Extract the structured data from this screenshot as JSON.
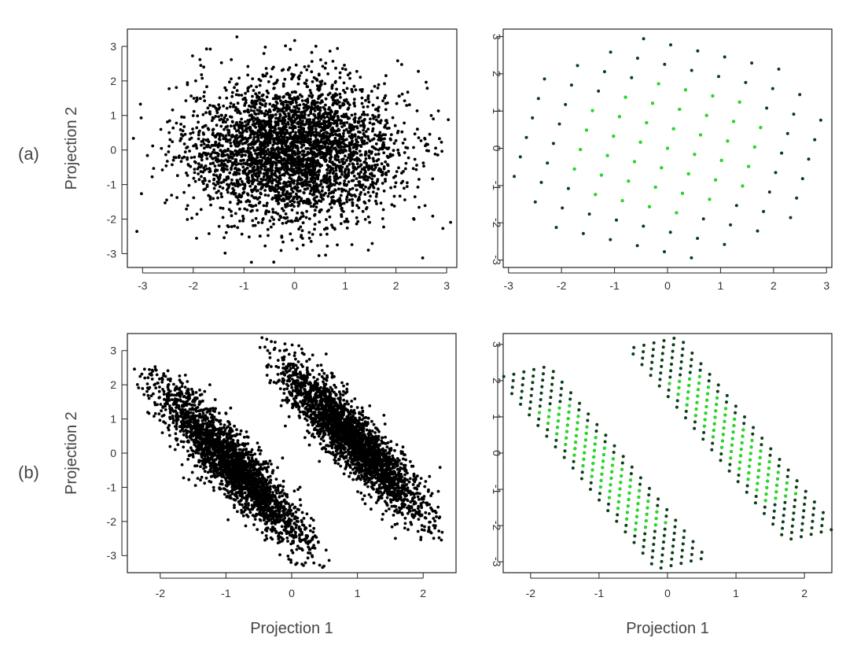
{
  "panel_labels": [
    "(a)",
    "(b)"
  ],
  "chart_data": [
    {
      "id": "a-left",
      "type": "scatter",
      "xlabel": "",
      "ylabel": "Projection 2",
      "xlim": [
        -3.3,
        3.2
      ],
      "ylim": [
        -3.4,
        3.5
      ],
      "xticks": [
        -3,
        -2,
        -1,
        0,
        1,
        2,
        3
      ],
      "yticks": [
        -3,
        -2,
        -1,
        0,
        1,
        2,
        3
      ],
      "grid": false,
      "series": [
        {
          "color": "#000000",
          "distribution": "isotropic gaussian cloud",
          "count": 3500,
          "mean": [
            0,
            0
          ],
          "sd": [
            1.05,
            1.0
          ],
          "corr": 0,
          "x_range": [
            -3.3,
            3.1
          ],
          "y_range": [
            -3.4,
            3.4
          ]
        }
      ]
    },
    {
      "id": "a-right",
      "type": "scatter",
      "xlabel": "",
      "ylabel": "",
      "xlim": [
        -3.1,
        3.1
      ],
      "ylim": [
        -3.2,
        3.2
      ],
      "xticks": [
        -3,
        -2,
        -1,
        0,
        1,
        2,
        3
      ],
      "yticks": [
        -3,
        -2,
        -1,
        0,
        1,
        2,
        3
      ],
      "grid": false,
      "series": [
        {
          "color": "#0b3d16",
          "distribution": "rotated lattice",
          "lattice_spacing": 0.72,
          "lattice_angle_deg": 30,
          "radius": 3.1
        },
        {
          "color": "#22dd22",
          "distribution": "rotated lattice (inner)",
          "lattice_spacing": 0.72,
          "lattice_angle_deg": 30,
          "radius": 1.9
        }
      ]
    },
    {
      "id": "b-left",
      "type": "scatter",
      "xlabel": "Projection 1",
      "ylabel": "Projection 2",
      "xlim": [
        -2.5,
        2.5
      ],
      "ylim": [
        -3.5,
        3.5
      ],
      "xticks": [
        -2,
        -1,
        0,
        1,
        2
      ],
      "yticks": [
        -3,
        -2,
        -1,
        0,
        1,
        2,
        3
      ],
      "grid": false,
      "series": [
        {
          "color": "#000000",
          "distribution": "elongated cluster",
          "count": 2600,
          "mean": [
            -0.9,
            -0.35
          ],
          "sd": [
            0.55,
            1.15
          ],
          "corr": -0.9,
          "x_range": [
            -2.4,
            0.6
          ],
          "y_range": [
            -3.4,
            2.6
          ]
        },
        {
          "color": "#000000",
          "distribution": "elongated cluster",
          "count": 2600,
          "mean": [
            0.95,
            0.35
          ],
          "sd": [
            0.55,
            1.15
          ],
          "corr": -0.9,
          "x_range": [
            -0.5,
            2.4
          ],
          "y_range": [
            -2.6,
            3.4
          ]
        }
      ]
    },
    {
      "id": "b-right",
      "type": "scatter",
      "xlabel": "Projection 1",
      "ylabel": "",
      "xlim": [
        -2.4,
        2.4
      ],
      "ylim": [
        -3.3,
        3.3
      ],
      "xticks": [
        -2,
        -1,
        0,
        1,
        2
      ],
      "yticks": [
        -3,
        -2,
        -1,
        0,
        1,
        2,
        3
      ],
      "grid": false,
      "series": [
        {
          "color": "#0b3d16",
          "distribution": "lattice band",
          "centers": [
            [
              -0.95,
              -0.4
            ],
            [
              0.95,
              0.4
            ]
          ],
          "slope": -2.3,
          "half_length": 3.0,
          "half_width": 0.45
        },
        {
          "color": "#22dd22",
          "distribution": "lattice band (inner)",
          "centers": [
            [
              -0.95,
              -0.4
            ],
            [
              0.95,
              0.4
            ]
          ],
          "slope": -2.3,
          "half_length": 1.8,
          "half_width": 0.25
        }
      ]
    }
  ]
}
